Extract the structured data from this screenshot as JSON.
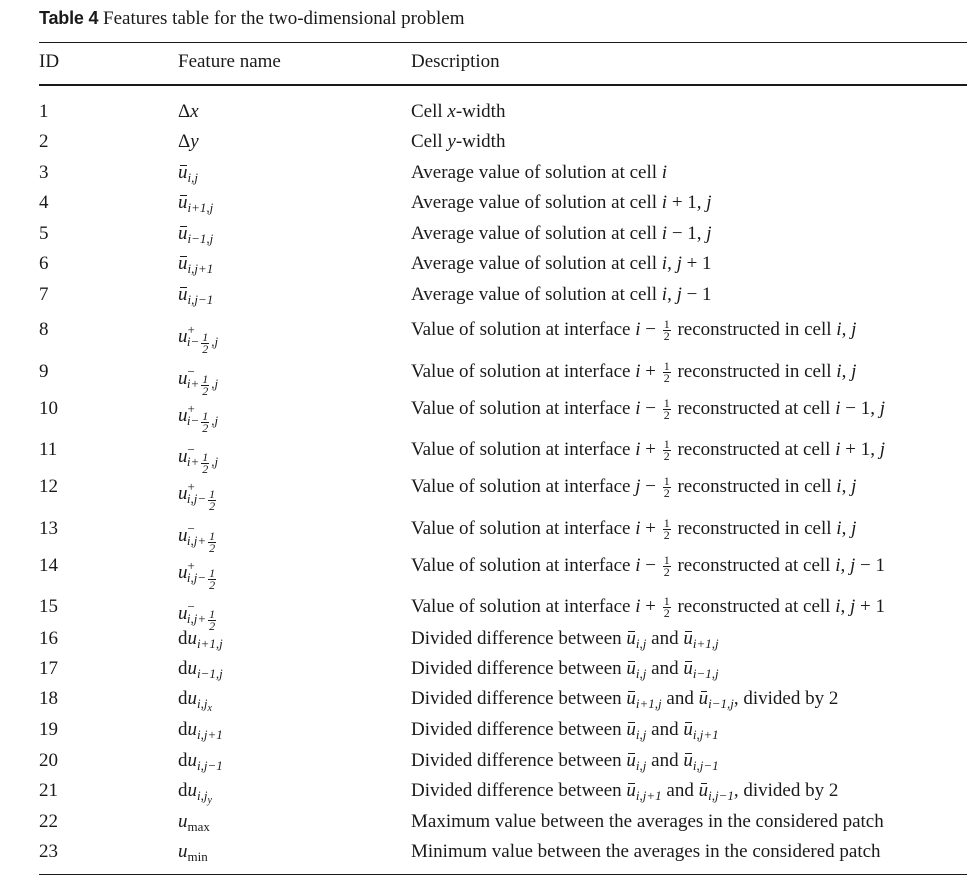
{
  "caption": {
    "label": "Table 4",
    "title": "Features table for the two-dimensional problem"
  },
  "headers": {
    "id": "ID",
    "feature": "Feature name",
    "description": "Description"
  },
  "rows": [
    {
      "id": "1",
      "feature": "Δx",
      "description": "Cell x-width"
    },
    {
      "id": "2",
      "feature": "Δy",
      "description": "Cell y-width"
    },
    {
      "id": "3",
      "feature": "ū_{i,j}",
      "description": "Average value of solution at cell i"
    },
    {
      "id": "4",
      "feature": "ū_{i+1,j}",
      "description": "Average value of solution at cell i + 1, j"
    },
    {
      "id": "5",
      "feature": "ū_{i−1,j}",
      "description": "Average value of solution at cell i − 1, j"
    },
    {
      "id": "6",
      "feature": "ū_{i,j+1}",
      "description": "Average value of solution at cell i, j + 1"
    },
    {
      "id": "7",
      "feature": "ū_{i,j−1}",
      "description": "Average value of solution at cell i, j − 1"
    },
    {
      "id": "8",
      "feature": "u^+_{i−1/2,j}",
      "description": "Value of solution at interface i − 1/2 reconstructed in cell i, j"
    },
    {
      "id": "9",
      "feature": "u^−_{i+1/2,j}",
      "description": "Value of solution at interface i + 1/2 reconstructed in cell i, j"
    },
    {
      "id": "10",
      "feature": "u^+_{i−1/2,j}",
      "description": "Value of solution at interface i − 1/2 reconstructed at cell i − 1, j"
    },
    {
      "id": "11",
      "feature": "u^−_{i+1/2,j}",
      "description": "Value of solution at interface i + 1/2 reconstructed at cell i + 1, j"
    },
    {
      "id": "12",
      "feature": "u^+_{i,j−1/2}",
      "description": "Value of solution at interface j − 1/2 reconstructed in cell i, j"
    },
    {
      "id": "13",
      "feature": "u^−_{i,j+1/2}",
      "description": "Value of solution at interface i + 1/2 reconstructed in cell i, j"
    },
    {
      "id": "14",
      "feature": "u^+_{i,j−1/2}",
      "description": "Value of solution at interface i − 1/2 reconstructed at cell i, j − 1"
    },
    {
      "id": "15",
      "feature": "u^−_{i,j+1/2}",
      "description": "Value of solution at interface i + 1/2 reconstructed at cell i, j + 1"
    },
    {
      "id": "16",
      "feature": "du_{i+1,j}",
      "description": "Divided difference between ū_{i,j} and ū_{i+1,j}"
    },
    {
      "id": "17",
      "feature": "du_{i−1,j}",
      "description": "Divided difference between ū_{i,j} and ū_{i−1,j}"
    },
    {
      "id": "18",
      "feature": "du_{i,j_x}",
      "description": "Divided difference between ū_{i+1,j} and ū_{i−1,j}, divided by 2"
    },
    {
      "id": "19",
      "feature": "du_{i,j+1}",
      "description": "Divided difference between ū_{i,j} and ū_{i,j+1}"
    },
    {
      "id": "20",
      "feature": "du_{i,j−1}",
      "description": "Divided difference between ū_{i,j} and ū_{i,j−1}"
    },
    {
      "id": "21",
      "feature": "du_{i,j_y}",
      "description": "Divided difference between ū_{i,j+1} and ū_{i,j−1}, divided by 2"
    },
    {
      "id": "22",
      "feature": "u_max",
      "description": "Maximum value between the averages in the considered patch"
    },
    {
      "id": "23",
      "feature": "u_min",
      "description": "Minimum value between the averages in the considered patch"
    }
  ]
}
